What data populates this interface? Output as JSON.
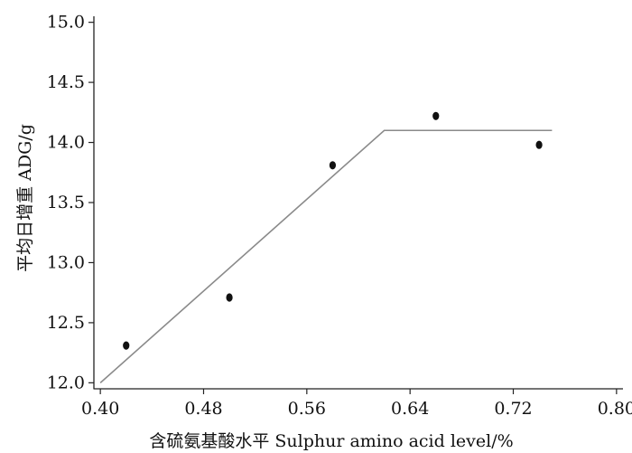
{
  "chart_data": {
    "type": "scatter",
    "title": "",
    "xlabel": "含硫氨基酸水平  Sulphur amino acid level/%",
    "ylabel": "平均日增重 ADG/g",
    "xlim": [
      0.395,
      0.805
    ],
    "ylim": [
      11.95,
      15.05
    ],
    "x_ticks": [
      0.4,
      0.48,
      0.56,
      0.64,
      0.72,
      0.8
    ],
    "x_tick_labels": [
      "0.40",
      "0.48",
      "0.56",
      "0.64",
      "0.72",
      "0.80"
    ],
    "y_ticks": [
      12.0,
      12.5,
      13.0,
      13.5,
      14.0,
      14.5,
      15.0
    ],
    "y_tick_labels": [
      "12.0",
      "12.5",
      "13.0",
      "13.5",
      "14.0",
      "14.5",
      "15.0"
    ],
    "grid": false,
    "series": [
      {
        "kind": "points",
        "x": [
          0.42,
          0.5,
          0.58,
          0.66,
          0.74
        ],
        "y": [
          12.31,
          12.71,
          13.81,
          14.22,
          13.98
        ]
      },
      {
        "kind": "broken-line",
        "x": [
          0.4,
          0.62,
          0.75
        ],
        "y": [
          12.0,
          14.1,
          14.1
        ]
      }
    ]
  }
}
